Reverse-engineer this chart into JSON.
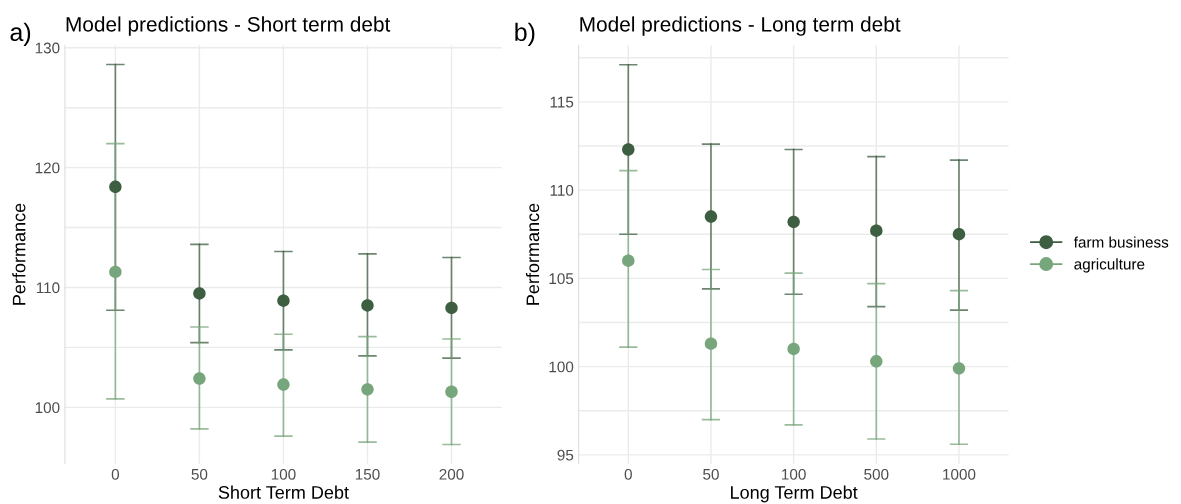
{
  "chart_data": [
    {
      "type": "scatter",
      "title": "Model predictions - Short term debt",
      "xlabel": "Short Term Debt",
      "ylabel": "Performance",
      "annotations": [
        "a)"
      ],
      "categories": [
        "0",
        "50",
        "100",
        "150",
        "200"
      ],
      "series": [
        {
          "color": "#3d5e40",
          "values": [
            118.4,
            109.5,
            108.9,
            108.5,
            108.3
          ],
          "errors": [
            [
              108.1,
              128.6
            ],
            [
              105.4,
              113.6
            ],
            [
              104.8,
              113.0
            ],
            [
              104.3,
              112.8
            ],
            [
              104.1,
              112.5
            ]
          ]
        },
        {
          "color": "#78a67c",
          "values": [
            111.3,
            102.4,
            101.9,
            101.5,
            101.3
          ],
          "errors": [
            [
              100.7,
              122.0
            ],
            [
              98.2,
              106.7
            ],
            [
              97.6,
              106.1
            ],
            [
              97.1,
              105.9
            ],
            [
              96.9,
              105.7
            ]
          ]
        }
      ],
      "ylim": [
        95.3,
        130.2
      ],
      "yticks": [
        100,
        {
          "value": 105,
          "label": null
        },
        110,
        {
          "value": 115,
          "label": null
        },
        120,
        {
          "value": 125,
          "label": null
        },
        130
      ],
      "grid": true,
      "marker": "circle"
    },
    {
      "type": "scatter",
      "title": "Model predictions - Long term debt",
      "xlabel": "Long Term Debt",
      "ylabel": "Performance",
      "annotations": [
        "b)"
      ],
      "categories": [
        "0",
        "50",
        "100",
        "500",
        "1000"
      ],
      "series": [
        {
          "name": "farm business",
          "color": "#3d5e40",
          "values": [
            112.3,
            108.5,
            108.2,
            107.7,
            107.5
          ],
          "errors": [
            [
              107.5,
              117.1
            ],
            [
              104.4,
              112.6
            ],
            [
              104.1,
              112.3
            ],
            [
              103.4,
              111.9
            ],
            [
              103.2,
              111.7
            ]
          ]
        },
        {
          "name": "agriculture",
          "color": "#78a67c",
          "values": [
            106.0,
            101.3,
            101.0,
            100.3,
            99.9
          ],
          "errors": [
            [
              101.1,
              111.1
            ],
            [
              97.0,
              105.5
            ],
            [
              96.7,
              105.3
            ],
            [
              95.9,
              104.7
            ],
            [
              95.6,
              104.3
            ]
          ]
        }
      ],
      "ylim": [
        94.5,
        118.2
      ],
      "yticks": [
        95,
        {
          "value": 97.5,
          "label": null
        },
        100,
        {
          "value": 102.5,
          "label": null
        },
        105,
        {
          "value": 107.5,
          "label": null
        },
        110,
        {
          "value": 112.5,
          "label": null
        },
        115,
        {
          "value": 117.5,
          "label": null
        }
      ],
      "grid": true,
      "marker": "circle",
      "legend": "right"
    }
  ]
}
